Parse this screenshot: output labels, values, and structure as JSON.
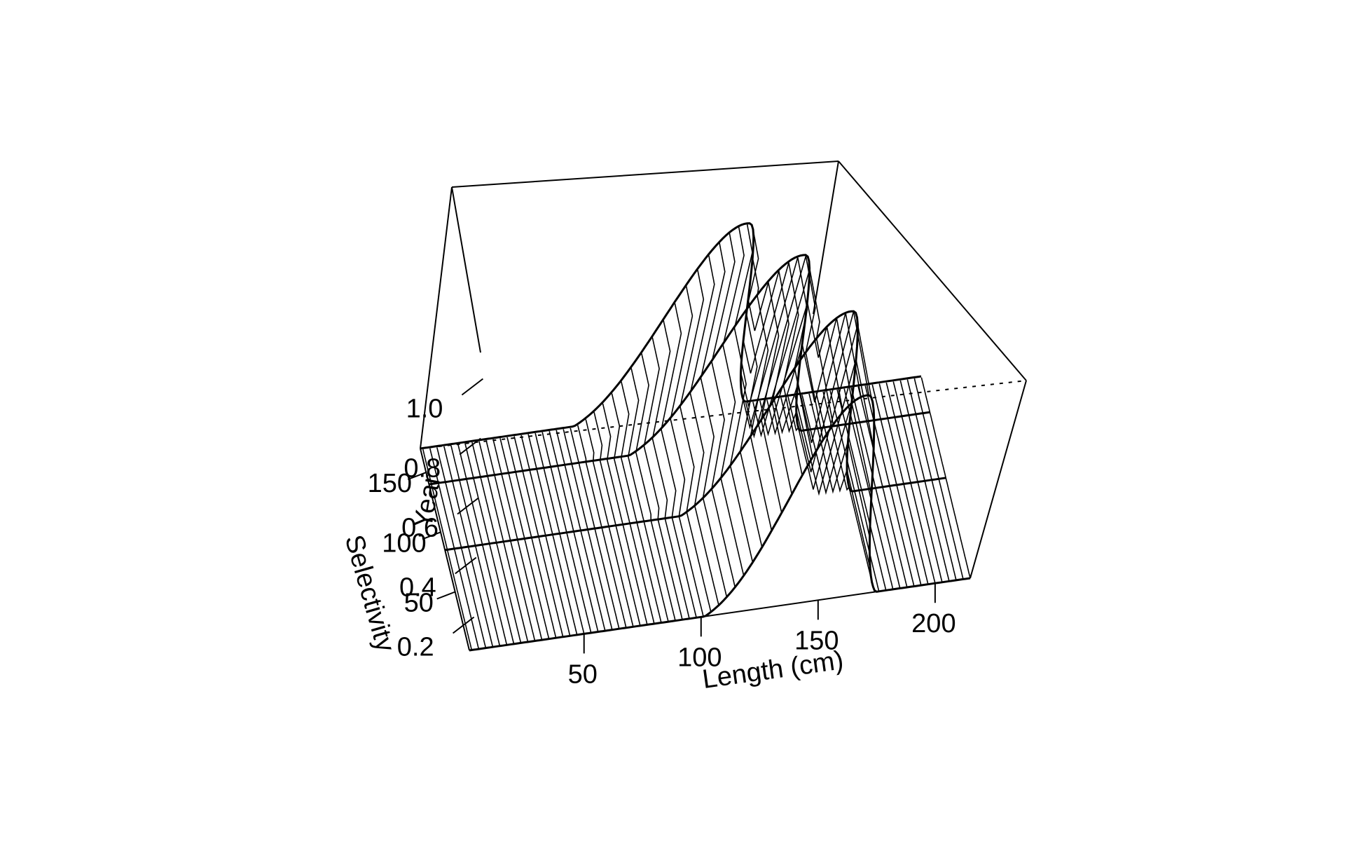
{
  "chart_data": {
    "type": "surface",
    "x_axis": {
      "label": "Length (cm)",
      "ticks": [
        50,
        100,
        150,
        200
      ],
      "range": [
        1,
        215
      ]
    },
    "y_axis": {
      "label": "Year",
      "ticks": [
        50,
        100,
        150
      ],
      "range": [
        1,
        170
      ]
    },
    "z_axis": {
      "label": "Selectivity",
      "ticks": [
        0.2,
        0.4,
        0.6,
        0.8,
        1.0
      ],
      "tick_labels": [
        "0.2",
        "0.4",
        "0.6",
        "0.8",
        "1.0"
      ],
      "range": [
        0.1,
        1.1
      ]
    },
    "year_blocks": [
      {
        "start": 1,
        "end": 85,
        "baseline": 0.05,
        "peak_length": 155,
        "peak": 1.0,
        "tail": 0.05
      },
      {
        "start": 85,
        "end": 140,
        "baseline": 0.05,
        "peak_length": 140,
        "peak": 1.0,
        "tail": 0.05
      },
      {
        "start": 140,
        "end": 170,
        "baseline": 0.05,
        "peak_length": 120,
        "peak": 1.0,
        "tail": 0.05
      }
    ],
    "box": true,
    "grid": false,
    "line_color": "#000000",
    "background": "#ffffff"
  }
}
